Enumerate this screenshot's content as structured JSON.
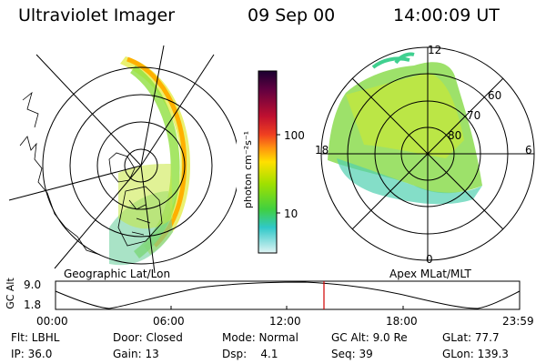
{
  "header": {
    "instrument": "Ultraviolet Imager",
    "date": "09 Sep 00",
    "time": "14:00:09 UT"
  },
  "left_panel": {
    "label": "Geographic Lat/Lon"
  },
  "right_panel": {
    "label": "Apex MLat/MLT",
    "lat_labels": [
      "60",
      "70",
      "80"
    ],
    "mlt_labels": {
      "top": "12",
      "left": "18",
      "right": "6",
      "bottom": "0"
    }
  },
  "colorbar": {
    "unit_label": "photon cm⁻²s⁻¹",
    "ticks": [
      "100",
      "10"
    ],
    "colors": [
      "#1a0030",
      "#600040",
      "#c01030",
      "#f04020",
      "#ff9010",
      "#ffe000",
      "#a0e000",
      "#40d040",
      "#30c8c8",
      "#d0f0f0"
    ]
  },
  "altitude_strip": {
    "axis_label": "GC Alt",
    "y_ticks": [
      "9.0",
      "1.8"
    ],
    "x_ticks": [
      "00:00",
      "06:00",
      "12:00",
      "18:00",
      "23:59"
    ],
    "current_marker_time": "14:00"
  },
  "footer": {
    "row1": [
      {
        "key": "flt",
        "text": "Flt: LBHL"
      },
      {
        "key": "door",
        "text": "Door: Closed"
      },
      {
        "key": "mode",
        "text": "Mode: Normal"
      },
      {
        "key": "gcalt",
        "text": "GC Alt: 9.0 Re"
      },
      {
        "key": "glat",
        "text": "GLat:  77.7"
      }
    ],
    "row2": [
      {
        "key": "ip",
        "text": "IP: 36.0"
      },
      {
        "key": "gain",
        "text": "Gain: 13"
      },
      {
        "key": "dsp",
        "text": "Dsp:    4.1"
      },
      {
        "key": "seq",
        "text": "Seq: 39"
      },
      {
        "key": "glon",
        "text": "GLon: 139.3"
      }
    ]
  }
}
